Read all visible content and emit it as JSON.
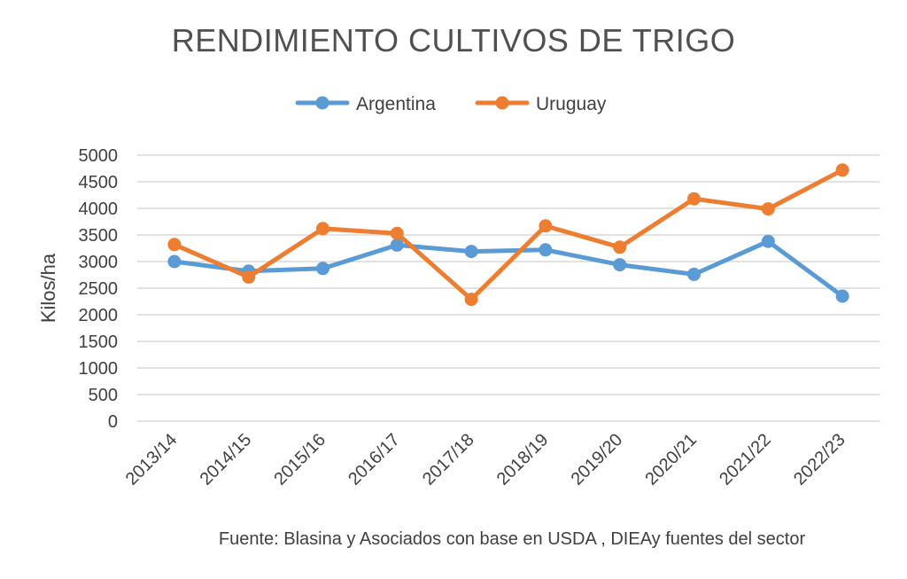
{
  "chart_data": {
    "type": "line",
    "title": "RENDIMIENTO CULTIVOS DE TRIGO",
    "xlabel": "",
    "ylabel": "Kilos/ha",
    "ylim": [
      0,
      5000
    ],
    "yticks": [
      "0",
      "500",
      "1000",
      "1500",
      "2000",
      "2500",
      "3000",
      "3500",
      "4000",
      "4500",
      "5000"
    ],
    "categories": [
      "2013/14",
      "2014/15",
      "2015/16",
      "2016/17",
      "2017/18",
      "2018/19",
      "2019/20",
      "2020/21",
      "2021/22",
      "2022/23"
    ],
    "series": [
      {
        "name": "Argentina",
        "color": "#5b9bd5",
        "values": [
          3000,
          2820,
          2870,
          3310,
          3190,
          3220,
          2940,
          2760,
          3380,
          2350
        ]
      },
      {
        "name": "Uruguay",
        "color": "#ed7d31",
        "values": [
          3320,
          2710,
          3620,
          3530,
          2290,
          3670,
          3270,
          4180,
          3990,
          4720
        ]
      }
    ],
    "grid": true,
    "legend_position": "top-center",
    "source": "Fuente: Blasina y Asociados con base en USDA , DIEAy fuentes del sector"
  }
}
